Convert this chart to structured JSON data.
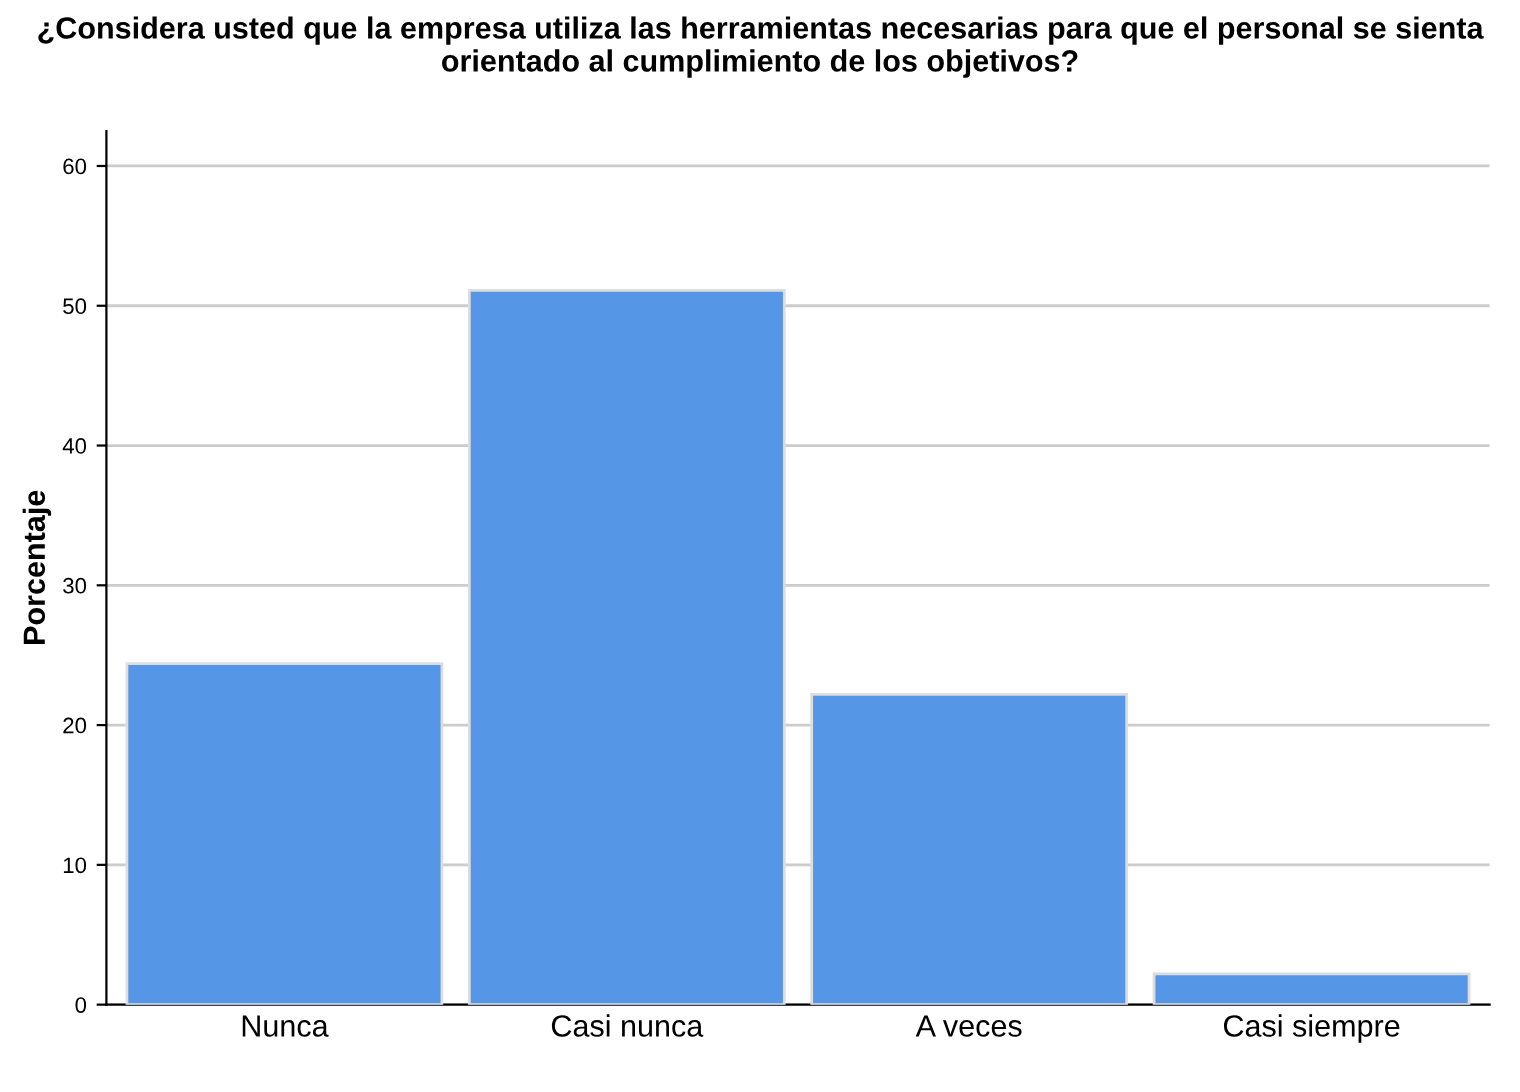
{
  "chart_data": {
    "type": "bar",
    "title": "¿Considera usted que la empresa utiliza las herramientas necesarias para que el personal se sienta orientado al cumplimiento de los objetivos?",
    "ylabel": "Porcentaje",
    "categories": [
      "Nunca",
      "Casi nunca",
      "A veces",
      "Casi siempre"
    ],
    "values": [
      24.4,
      51.1,
      22.2,
      2.2
    ],
    "color": "#5596e6",
    "ylim": [
      0,
      62.5
    ],
    "yticks": [
      0,
      10,
      20,
      30,
      40,
      50,
      60
    ],
    "grid": "y"
  }
}
